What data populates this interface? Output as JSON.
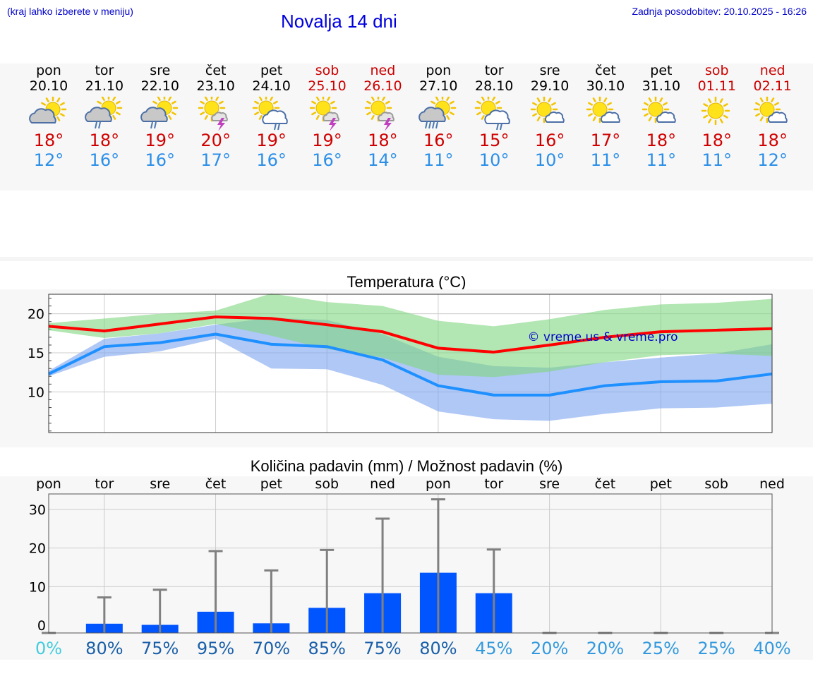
{
  "header": {
    "hint": "(kraj lahko izberete v meniju)",
    "title": "Novalja 14 dni",
    "updated": "Zadnja posodobitev: 20.10.2025 - 16:26"
  },
  "colors": {
    "max_temp": "#d00000",
    "min_temp": "#2b8fe8",
    "weekend": "#cc0000",
    "precip_bar": "#0055ff",
    "band_green": "#7ed67e",
    "band_blue": "#7ba3ee",
    "line_red": "#ff0000",
    "line_blue": "#1e90ff"
  },
  "forecast": {
    "days": [
      {
        "weekday": "pon",
        "date": "20.10",
        "icon": "partly-cloudy-icon",
        "tmax": "18°",
        "tmin": "12°",
        "weekend": false
      },
      {
        "weekday": "tor",
        "date": "21.10",
        "icon": "cloudy-rain-icon",
        "tmax": "18°",
        "tmin": "16°",
        "weekend": false
      },
      {
        "weekday": "sre",
        "date": "22.10",
        "icon": "cloudy-rain-icon",
        "tmax": "19°",
        "tmin": "16°",
        "weekend": false
      },
      {
        "weekday": "čet",
        "date": "23.10",
        "icon": "sun-thunder-icon",
        "tmax": "20°",
        "tmin": "17°",
        "weekend": false
      },
      {
        "weekday": "pet",
        "date": "24.10",
        "icon": "sun-cloud-rain-icon",
        "tmax": "19°",
        "tmin": "16°",
        "weekend": false
      },
      {
        "weekday": "sob",
        "date": "25.10",
        "icon": "sun-thunder-icon",
        "tmax": "19°",
        "tmin": "16°",
        "weekend": true
      },
      {
        "weekday": "ned",
        "date": "26.10",
        "icon": "sun-thunder-icon",
        "tmax": "18°",
        "tmin": "14°",
        "weekend": true
      },
      {
        "weekday": "pon",
        "date": "27.10",
        "icon": "cloudy-heavy-rain-icon",
        "tmax": "16°",
        "tmin": "11°",
        "weekend": false
      },
      {
        "weekday": "tor",
        "date": "28.10",
        "icon": "sun-cloud-rain-icon",
        "tmax": "15°",
        "tmin": "10°",
        "weekend": false
      },
      {
        "weekday": "sre",
        "date": "29.10",
        "icon": "sun-small-cloud-icon",
        "tmax": "16°",
        "tmin": "10°",
        "weekend": false
      },
      {
        "weekday": "čet",
        "date": "30.10",
        "icon": "sun-small-cloud-icon",
        "tmax": "17°",
        "tmin": "11°",
        "weekend": false
      },
      {
        "weekday": "pet",
        "date": "31.10",
        "icon": "sun-small-cloud-icon",
        "tmax": "18°",
        "tmin": "11°",
        "weekend": false
      },
      {
        "weekday": "sob",
        "date": "01.11",
        "icon": "sun-icon",
        "tmax": "18°",
        "tmin": "11°",
        "weekend": true
      },
      {
        "weekday": "ned",
        "date": "02.11",
        "icon": "sun-small-cloud-icon",
        "tmax": "18°",
        "tmin": "12°",
        "weekend": true
      }
    ]
  },
  "chart_data": [
    {
      "type": "line",
      "title": "Temperatura (°C)",
      "xlabel": "",
      "ylabel": "",
      "ylim": [
        4.8,
        22.5
      ],
      "yticks": [
        10,
        15,
        20
      ],
      "grid": true,
      "watermark": "© vreme.us & vreme.pro",
      "categories": [
        "pon",
        "tor",
        "sre",
        "čet",
        "pet",
        "sob",
        "ned",
        "pon",
        "tor",
        "sre",
        "čet",
        "pet",
        "sob",
        "ned"
      ],
      "series": [
        {
          "name": "max",
          "values": [
            18.4,
            17.8,
            18.7,
            19.6,
            19.4,
            18.6,
            17.7,
            15.6,
            15.1,
            16.0,
            17.0,
            17.7,
            17.9,
            18.1
          ]
        },
        {
          "name": "min",
          "values": [
            12.3,
            15.8,
            16.3,
            17.4,
            16.1,
            15.8,
            14.1,
            10.8,
            9.6,
            9.6,
            10.8,
            11.3,
            11.4,
            12.3
          ]
        },
        {
          "name": "max_range_high",
          "values": [
            18.8,
            19.4,
            20.0,
            20.4,
            22.6,
            21.5,
            21.0,
            19.1,
            18.4,
            19.3,
            20.5,
            21.2,
            21.4,
            21.9
          ]
        },
        {
          "name": "max_range_low",
          "values": [
            17.9,
            16.9,
            17.5,
            18.7,
            17.2,
            15.5,
            14.4,
            12.2,
            11.9,
            12.6,
            13.8,
            14.7,
            14.9,
            14.6
          ]
        },
        {
          "name": "min_range_high",
          "values": [
            12.7,
            16.8,
            17.5,
            18.6,
            19.5,
            19.2,
            17.4,
            14.5,
            13.3,
            13.1,
            13.8,
            14.4,
            14.9,
            16.1
          ]
        },
        {
          "name": "min_range_low",
          "values": [
            12.0,
            14.5,
            15.2,
            16.8,
            13.0,
            12.9,
            10.9,
            7.5,
            6.5,
            6.3,
            7.2,
            7.9,
            8.0,
            8.5
          ]
        }
      ]
    },
    {
      "type": "bar",
      "title": "Količina padavin (mm) / Možnost padavin (%)",
      "xlabel": "",
      "ylabel": "",
      "ylim": [
        -2,
        34
      ],
      "yticks": [
        0,
        10,
        20,
        30
      ],
      "grid": true,
      "categories": [
        "pon",
        "tor",
        "sre",
        "čet",
        "pet",
        "sob",
        "ned",
        "pon",
        "tor",
        "sre",
        "čet",
        "pet",
        "sob",
        "ned"
      ],
      "values": [
        0,
        0.4,
        0.1,
        3.5,
        0.5,
        4.5,
        8.3,
        13.6,
        8.3,
        0,
        0,
        0,
        0,
        0
      ],
      "max_values": [
        0,
        7.2,
        9.2,
        19.2,
        14.2,
        19.5,
        27.6,
        32.6,
        19.6,
        0,
        0,
        0,
        0,
        0
      ],
      "probability": [
        "0%",
        "80%",
        "75%",
        "95%",
        "70%",
        "85%",
        "75%",
        "80%",
        "45%",
        "20%",
        "20%",
        "25%",
        "25%",
        "40%"
      ],
      "probability_values": [
        0,
        80,
        75,
        95,
        70,
        85,
        75,
        80,
        45,
        20,
        20,
        25,
        25,
        40
      ]
    }
  ]
}
